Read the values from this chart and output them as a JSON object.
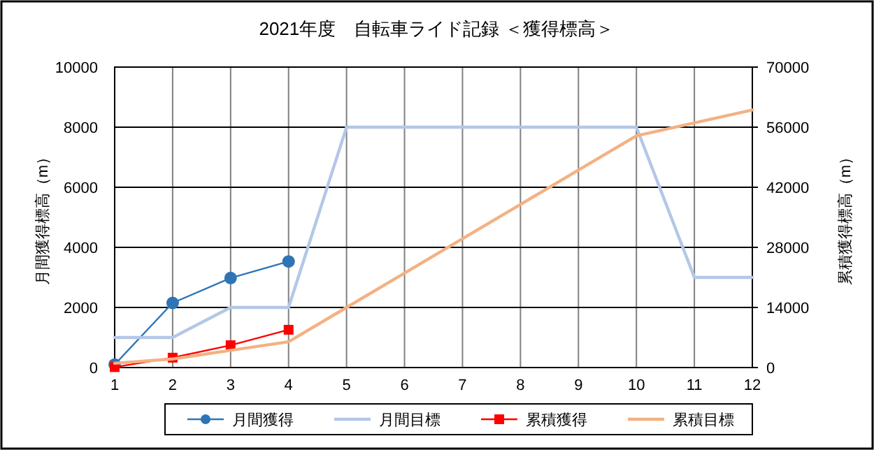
{
  "chart_data": {
    "type": "line",
    "title": "2021年度　自転車ライド記録 ＜獲得標高＞",
    "ylabel": "月間獲得標高（m）",
    "y2label": "累積獲得標高（m）",
    "x": [
      1,
      2,
      3,
      4,
      5,
      6,
      7,
      8,
      9,
      10,
      11,
      12
    ],
    "xlim": [
      1,
      12
    ],
    "xticks": [
      1,
      2,
      3,
      4,
      5,
      6,
      7,
      8,
      9,
      10,
      11,
      12
    ],
    "ylim": [
      0,
      10000
    ],
    "yticks": [
      0,
      2000,
      4000,
      6000,
      8000,
      10000
    ],
    "y2lim": [
      0,
      70000
    ],
    "y2ticks": [
      0,
      14000,
      28000,
      42000,
      56000,
      70000
    ],
    "grid": true,
    "legend": "bottom",
    "series": [
      {
        "name": "月間獲得",
        "color": "#2e75b6",
        "marker": "circle",
        "values": [
          100,
          2150,
          2980,
          3530,
          null,
          null,
          null,
          null,
          null,
          null,
          null,
          null
        ]
      },
      {
        "name": "月間目標",
        "color": "#b4c7e7",
        "values": [
          1000,
          1000,
          2000,
          2000,
          8000,
          8000,
          8000,
          8000,
          8000,
          8000,
          3000,
          3000
        ]
      },
      {
        "name": "累積獲得",
        "color": "#ff0000",
        "marker": "square",
        "axis": "y2",
        "values": [
          100,
          2300,
          5200,
          8800,
          null,
          null,
          null,
          null,
          null,
          null,
          null,
          null
        ]
      },
      {
        "name": "累積目標",
        "color": "#f4b183",
        "axis": "y2",
        "values": [
          1000,
          2000,
          4000,
          6000,
          14000,
          22000,
          30000,
          38000,
          46000,
          54000,
          57000,
          60000
        ]
      }
    ]
  }
}
